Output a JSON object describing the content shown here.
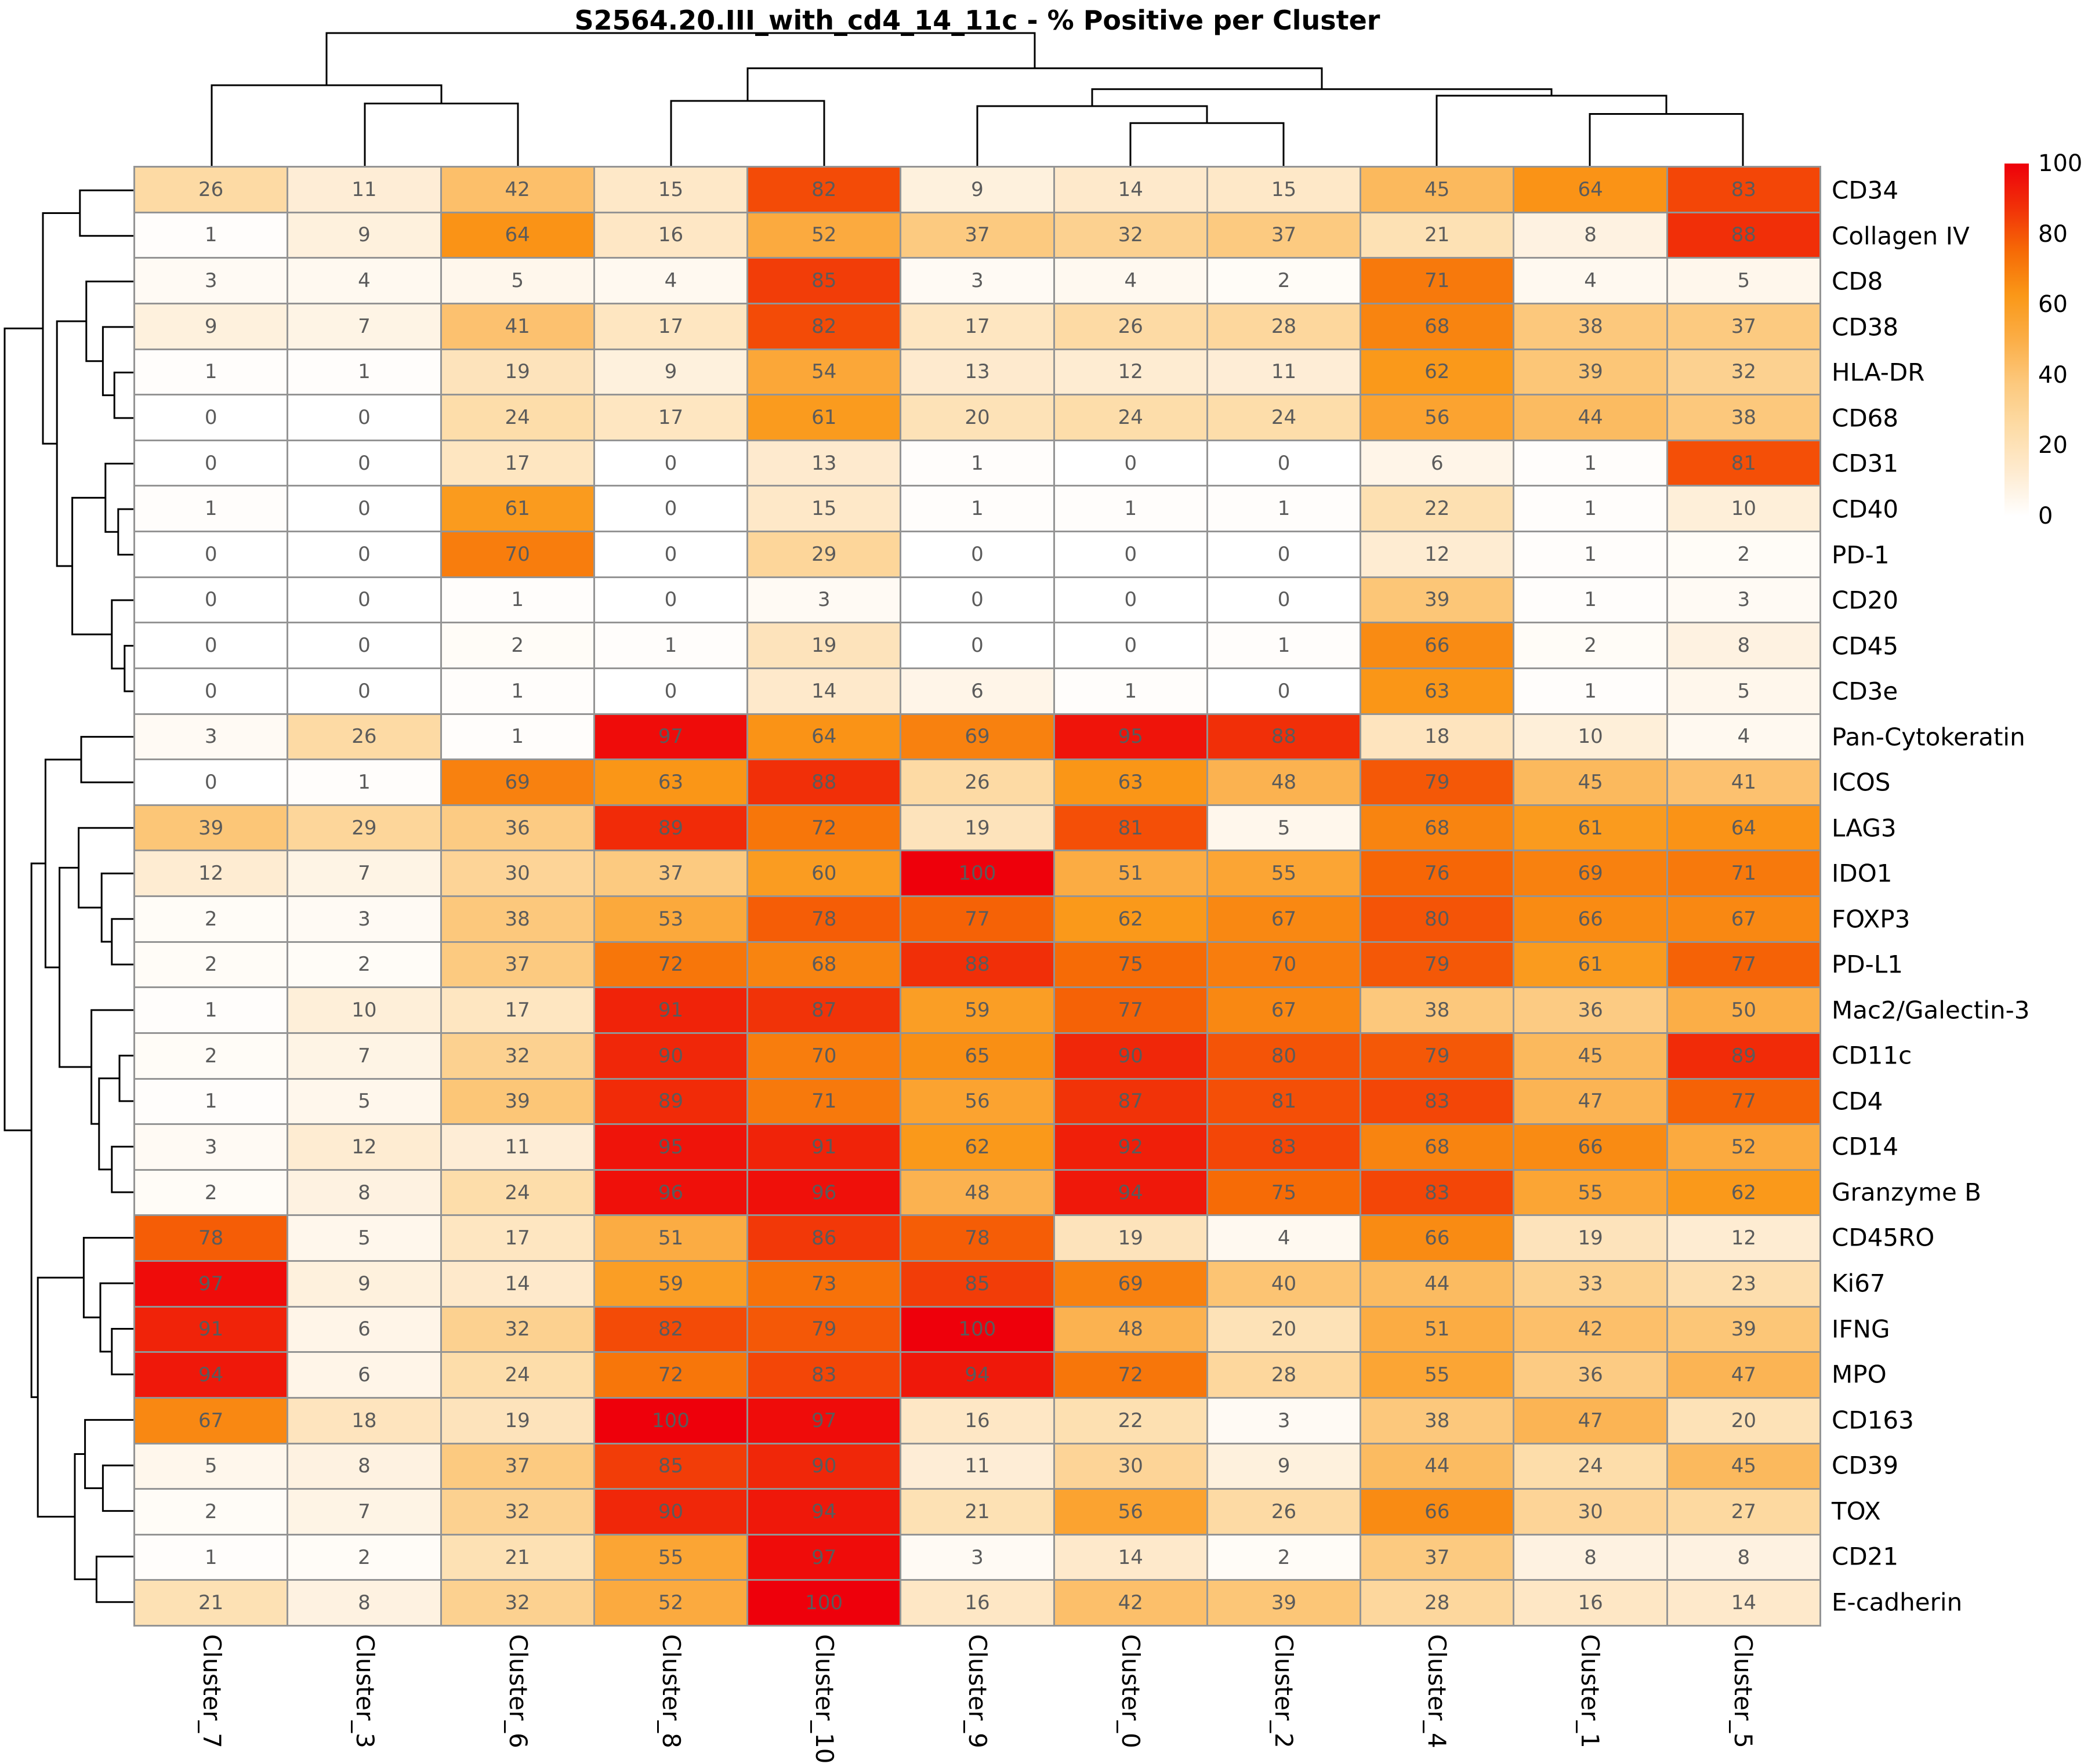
{
  "title": "S2564.20.III_with_cd4_14_11c - % Positive per Cluster",
  "chart_data": {
    "type": "heatmap",
    "title": "S2564.20.III_with_cd4_14_11c - % Positive per Cluster",
    "annotation": "integer percent positive per cell",
    "legend_position": "right",
    "grid_color": "#949494",
    "annotation_color": "#5b5b5b",
    "columns": [
      "Cluster_7",
      "Cluster_3",
      "Cluster_6",
      "Cluster_8",
      "Cluster_10",
      "Cluster_9",
      "Cluster_0",
      "Cluster_2",
      "Cluster_4",
      "Cluster_1",
      "Cluster_5"
    ],
    "rows": [
      "CD34",
      "Collagen IV",
      "CD8",
      "CD38",
      "HLA-DR",
      "CD68",
      "CD31",
      "CD40",
      "PD-1",
      "CD20",
      "CD45",
      "CD3e",
      "Pan-Cytokeratin",
      "ICOS",
      "LAG3",
      "IDO1",
      "FOXP3",
      "PD-L1",
      "Mac2/Galectin-3",
      "CD11c",
      "CD4",
      "CD14",
      "Granzyme B",
      "CD45RO",
      "Ki67",
      "IFNG",
      "MPO",
      "CD163",
      "CD39",
      "TOX",
      "CD21",
      "E-cadherin"
    ],
    "values": [
      [
        26,
        11,
        42,
        15,
        82,
        9,
        14,
        15,
        45,
        64,
        83
      ],
      [
        1,
        9,
        64,
        16,
        52,
        37,
        32,
        37,
        21,
        8,
        88
      ],
      [
        3,
        4,
        5,
        4,
        85,
        3,
        4,
        2,
        71,
        4,
        5
      ],
      [
        9,
        7,
        41,
        17,
        82,
        17,
        26,
        28,
        68,
        38,
        37
      ],
      [
        1,
        1,
        19,
        9,
        54,
        13,
        12,
        11,
        62,
        39,
        32
      ],
      [
        0,
        0,
        24,
        17,
        61,
        20,
        24,
        24,
        56,
        44,
        38
      ],
      [
        0,
        0,
        17,
        0,
        13,
        1,
        0,
        0,
        6,
        1,
        81
      ],
      [
        1,
        0,
        61,
        0,
        15,
        1,
        1,
        1,
        22,
        1,
        10
      ],
      [
        0,
        0,
        70,
        0,
        29,
        0,
        0,
        0,
        12,
        1,
        2
      ],
      [
        0,
        0,
        1,
        0,
        3,
        0,
        0,
        0,
        39,
        1,
        3
      ],
      [
        0,
        0,
        2,
        1,
        19,
        0,
        0,
        1,
        66,
        2,
        8
      ],
      [
        0,
        0,
        1,
        0,
        14,
        6,
        1,
        0,
        63,
        1,
        5
      ],
      [
        3,
        26,
        1,
        97,
        64,
        69,
        95,
        88,
        18,
        10,
        4
      ],
      [
        0,
        1,
        69,
        63,
        88,
        26,
        63,
        48,
        79,
        45,
        41
      ],
      [
        39,
        29,
        36,
        89,
        72,
        19,
        81,
        5,
        68,
        61,
        64
      ],
      [
        12,
        7,
        30,
        37,
        60,
        100,
        51,
        55,
        76,
        69,
        71
      ],
      [
        2,
        3,
        38,
        53,
        78,
        77,
        62,
        67,
        80,
        66,
        67
      ],
      [
        2,
        2,
        37,
        72,
        68,
        88,
        75,
        70,
        79,
        61,
        77
      ],
      [
        1,
        10,
        17,
        91,
        87,
        59,
        77,
        67,
        38,
        36,
        50
      ],
      [
        2,
        7,
        32,
        90,
        70,
        65,
        90,
        80,
        79,
        45,
        89
      ],
      [
        1,
        5,
        39,
        89,
        71,
        56,
        87,
        81,
        83,
        47,
        77
      ],
      [
        3,
        12,
        11,
        95,
        91,
        62,
        92,
        83,
        68,
        66,
        52
      ],
      [
        2,
        8,
        24,
        96,
        96,
        48,
        94,
        75,
        83,
        55,
        62
      ],
      [
        78,
        5,
        17,
        51,
        86,
        78,
        19,
        4,
        66,
        19,
        12
      ],
      [
        97,
        9,
        14,
        59,
        73,
        85,
        69,
        40,
        44,
        33,
        23
      ],
      [
        91,
        6,
        32,
        82,
        79,
        100,
        48,
        20,
        51,
        42,
        39
      ],
      [
        94,
        6,
        24,
        72,
        83,
        94,
        72,
        28,
        55,
        36,
        47
      ],
      [
        67,
        18,
        19,
        100,
        97,
        16,
        22,
        3,
        38,
        47,
        20
      ],
      [
        5,
        8,
        37,
        85,
        90,
        11,
        30,
        9,
        44,
        24,
        45
      ],
      [
        2,
        7,
        32,
        90,
        94,
        21,
        56,
        26,
        66,
        30,
        27
      ],
      [
        1,
        2,
        21,
        55,
        97,
        3,
        14,
        2,
        37,
        8,
        8
      ],
      [
        21,
        8,
        32,
        52,
        100,
        16,
        42,
        39,
        28,
        16,
        14
      ]
    ],
    "value_range": [
      0,
      100
    ],
    "colorbar_ticks": [
      100,
      80,
      60,
      40,
      20,
      0
    ],
    "colormap_stops": [
      {
        "v": 0,
        "c": "#ffffff"
      },
      {
        "v": 12.5,
        "c": "#feebd0"
      },
      {
        "v": 25,
        "c": "#fddca7"
      },
      {
        "v": 37.5,
        "c": "#fcc97e"
      },
      {
        "v": 50,
        "c": "#fbae47"
      },
      {
        "v": 62.5,
        "c": "#fa9818"
      },
      {
        "v": 75,
        "c": "#f66b06"
      },
      {
        "v": 87.5,
        "c": "#f13108"
      },
      {
        "v": 100,
        "c": "#ee000b"
      }
    ],
    "col_dendrogram": {
      "h": 1.0,
      "c": [
        {
          "h": 0.6,
          "c": [
            0,
            {
              "h": 0.46,
              "c": [
                1,
                2
              ]
            }
          ]
        },
        {
          "h": 0.73,
          "c": [
            {
              "h": 0.48,
              "c": [
                3,
                4
              ]
            },
            {
              "h": 0.57,
              "c": [
                {
                  "h": 0.44,
                  "c": [
                    5,
                    {
                      "h": 0.31,
                      "c": [
                        6,
                        7
                      ]
                    }
                  ]
                },
                {
                  "h": 0.52,
                  "c": [
                    8,
                    {
                      "h": 0.38,
                      "c": [
                        9,
                        10
                      ]
                    }
                  ]
                }
              ]
            }
          ]
        }
      ]
    },
    "row_dendrogram": {
      "h": 1.0,
      "c": [
        {
          "h": 0.7,
          "c": [
            {
              "h": 0.41,
              "c": [
                0,
                1
              ]
            },
            {
              "h": 0.59,
              "c": [
                {
                  "h": 0.36,
                  "c": [
                    2,
                    {
                      "h": 0.23,
                      "c": [
                        3,
                        {
                          "h": 0.14,
                          "c": [
                            4,
                            5
                          ]
                        }
                      ]
                    }
                  ]
                },
                {
                  "h": 0.47,
                  "c": [
                    {
                      "h": 0.21,
                      "c": [
                        6,
                        {
                          "h": 0.11,
                          "c": [
                            7,
                            8
                          ]
                        }
                      ]
                    },
                    {
                      "h": 0.16,
                      "c": [
                        9,
                        {
                          "h": 0.06,
                          "c": [
                            10,
                            11
                          ]
                        }
                      ]
                    }
                  ]
                }
              ]
            }
          ]
        },
        {
          "h": 0.79,
          "c": [
            {
              "h": 0.68,
              "c": [
                {
                  "h": 0.4,
                  "c": [
                    12,
                    13
                  ]
                },
                {
                  "h": 0.57,
                  "c": [
                    {
                      "h": 0.42,
                      "c": [
                        14,
                        {
                          "h": 0.24,
                          "c": [
                            15,
                            {
                              "h": 0.16,
                              "c": [
                                16,
                                17
                              ]
                            }
                          ]
                        }
                      ]
                    },
                    {
                      "h": 0.32,
                      "c": [
                        18,
                        {
                          "h": 0.26,
                          "c": [
                            {
                              "h": 0.1,
                              "c": [
                                19,
                                20
                              ]
                            },
                            {
                              "h": 0.16,
                              "c": [
                                21,
                                22
                              ]
                            }
                          ]
                        }
                      ]
                    }
                  ]
                }
              ]
            },
            {
              "h": 0.74,
              "c": [
                {
                  "h": 0.38,
                  "c": [
                    23,
                    {
                      "h": 0.25,
                      "c": [
                        24,
                        {
                          "h": 0.16,
                          "c": [
                            25,
                            26
                          ]
                        }
                      ]
                    }
                  ]
                },
                {
                  "h": 0.45,
                  "c": [
                    {
                      "h": 0.37,
                      "c": [
                        27,
                        {
                          "h": 0.23,
                          "c": [
                            28,
                            29
                          ]
                        }
                      ]
                    },
                    {
                      "h": 0.28,
                      "c": [
                        30,
                        31
                      ]
                    }
                  ]
                }
              ]
            }
          ]
        }
      ]
    }
  }
}
